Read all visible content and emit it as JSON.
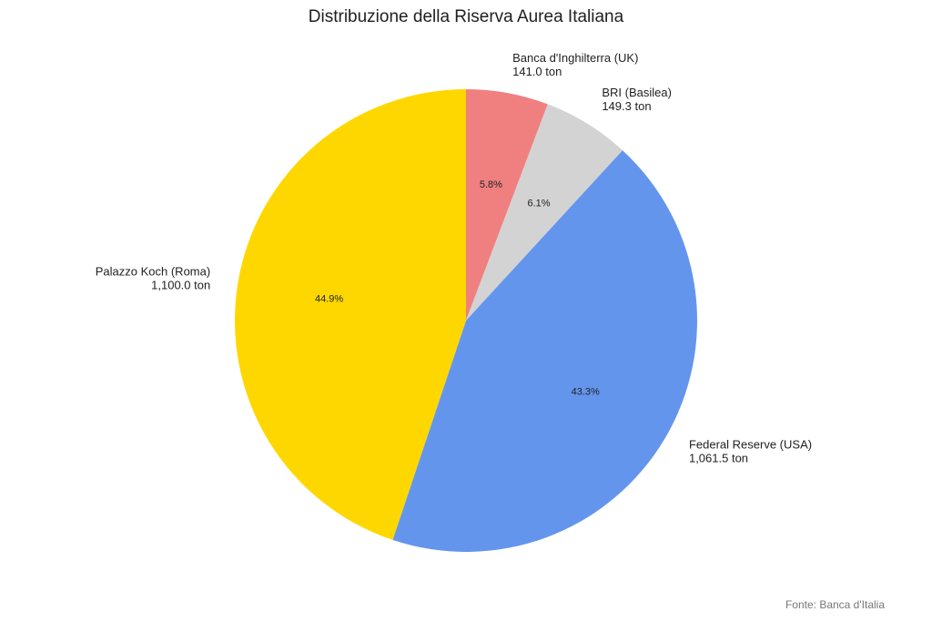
{
  "chart_data": {
    "type": "pie",
    "title": "Distribuzione della Riserva Aurea Italiana",
    "unit": "ton",
    "start_angle": "top",
    "direction": "clockwise",
    "slices": [
      {
        "name": "Banca d'Inghilterra (UK)",
        "value": 141.0,
        "value_label": "141.0 ton",
        "percent_label": "5.8%",
        "color": "#F08080"
      },
      {
        "name": "BRI (Basilea)",
        "value": 149.3,
        "value_label": "149.3 ton",
        "percent_label": "6.1%",
        "color": "#D3D3D3"
      },
      {
        "name": "Federal Reserve (USA)",
        "value": 1061.5,
        "value_label": "1,061.5 ton",
        "percent_label": "43.3%",
        "color": "#6495ED"
      },
      {
        "name": "Palazzo Koch (Roma)",
        "value": 1100.0,
        "value_label": "1,100.0 ton",
        "percent_label": "44.9%",
        "color": "#FFD700"
      }
    ]
  },
  "source_note": "Fonte: Banca d'Italia"
}
